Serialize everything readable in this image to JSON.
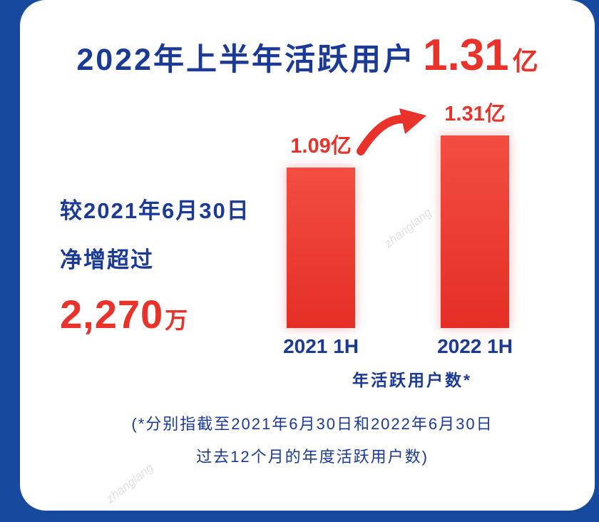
{
  "colors": {
    "background": "#174a9f",
    "navy": "#1b3a96",
    "red": "#e8322a",
    "bar_top": "#f34d41",
    "bar_bottom": "#e52e26"
  },
  "header": {
    "title_prefix": "2022年上半年活跃用户",
    "title_value": "1.31",
    "title_unit": "亿"
  },
  "left_note": {
    "line1": "较2021年6月30日",
    "line2": "净增超过",
    "value": "2,270",
    "unit": "万"
  },
  "chart_data": {
    "type": "bar",
    "title": "2022年上半年活跃用户1.31亿",
    "categories": [
      "2021 1H",
      "2022 1H"
    ],
    "values": [
      1.09,
      1.31
    ],
    "value_labels": [
      "1.09亿",
      "1.31亿"
    ],
    "unit": "亿",
    "xlabel": "年活跃用户数*",
    "ylabel": "",
    "ylim": [
      0,
      1.31
    ],
    "grid": false,
    "legend": "none",
    "annotations": [
      "growth-arrow between 2021 1H and 2022 1H"
    ]
  },
  "footnote": {
    "line1": "(*分别指截至2021年6月30日和2022年6月30日",
    "line2": "过去12个月的年度活跃用户数)"
  },
  "watermark": "zhanglang"
}
